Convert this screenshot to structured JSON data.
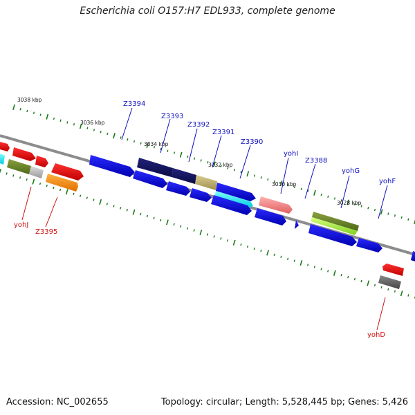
{
  "title": "Escherichia coli O157:H7 EDL933, complete genome",
  "footer": {
    "accession": "Accession: NC_002655",
    "topology": "Topology: circular; Length: 5,528,445 bp; Genes: 5,426"
  },
  "scale_labels": [
    "3038 kbp",
    "3036 kbp",
    "3034 kbp",
    "3032 kbp",
    "3030 kbp",
    "3028 kbp"
  ],
  "gene_labels_top": [
    "Z3394",
    "Z3393",
    "Z3392",
    "Z3391",
    "Z3390",
    "yohI",
    "Z3388",
    "yohG",
    "yohF"
  ],
  "gene_labels_bottom": [
    "yohJ",
    "Z3395",
    "yohD"
  ],
  "colors": {
    "backbone": "#8c8c8c",
    "tick": "#1a7a1a",
    "label_forward": "#1010c0",
    "label_reverse": "#d01010"
  }
}
